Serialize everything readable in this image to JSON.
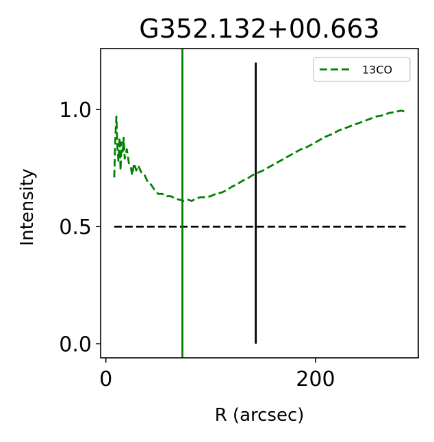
{
  "chart_data": {
    "type": "line",
    "title": "G352.132+00.663",
    "xlabel": "R (arcsec)",
    "ylabel": "Intensity",
    "xlim": [
      -5,
      298
    ],
    "ylim": [
      -0.06,
      1.26
    ],
    "xticks": [
      {
        "value": 0,
        "label": "0"
      },
      {
        "value": 200,
        "label": "200"
      }
    ],
    "yticks": [
      {
        "value": 0.0,
        "label": "0.0"
      },
      {
        "value": 0.5,
        "label": "0.5"
      },
      {
        "value": 1.0,
        "label": "1.0"
      }
    ],
    "grid": false,
    "legend": {
      "position": "top-right",
      "entries": [
        "13CO"
      ]
    },
    "series": [
      {
        "name": "13CO",
        "color": "#008000",
        "style": "dashed",
        "x": [
          8,
          9,
          10,
          11,
          12,
          13,
          14,
          15,
          16,
          17,
          18,
          20,
          22,
          24,
          25,
          27,
          29,
          31,
          34,
          37,
          40,
          43,
          46,
          50,
          54,
          58,
          62,
          66,
          70,
          74,
          78,
          82,
          86,
          90,
          95,
          100,
          105,
          110,
          115,
          120,
          125,
          130,
          135,
          140,
          145,
          150,
          156,
          162,
          168,
          174,
          180,
          186,
          192,
          198,
          204,
          210,
          216,
          222,
          228,
          234,
          240,
          246,
          252,
          258,
          264,
          270,
          276,
          282,
          286
        ],
        "y": [
          0.71,
          0.87,
          0.97,
          0.84,
          0.78,
          0.88,
          0.74,
          0.86,
          0.82,
          0.88,
          0.79,
          0.83,
          0.77,
          0.75,
          0.72,
          0.77,
          0.74,
          0.76,
          0.73,
          0.72,
          0.69,
          0.68,
          0.66,
          0.64,
          0.64,
          0.63,
          0.63,
          0.62,
          0.615,
          0.61,
          0.615,
          0.61,
          0.62,
          0.625,
          0.625,
          0.63,
          0.64,
          0.645,
          0.655,
          0.67,
          0.68,
          0.695,
          0.705,
          0.72,
          0.73,
          0.74,
          0.755,
          0.77,
          0.785,
          0.8,
          0.815,
          0.83,
          0.84,
          0.855,
          0.87,
          0.885,
          0.895,
          0.91,
          0.92,
          0.93,
          0.94,
          0.95,
          0.96,
          0.97,
          0.975,
          0.985,
          0.99,
          0.995,
          0.99
        ]
      }
    ],
    "reference_lines": [
      {
        "kind": "hline",
        "y": 0.5,
        "x_range": [
          8,
          286
        ],
        "color": "#000000",
        "style": "dashed"
      },
      {
        "kind": "vline",
        "x": 73,
        "y_range": [
          -0.06,
          1.26
        ],
        "color": "#008000",
        "style": "solid"
      },
      {
        "kind": "vline",
        "x": 143,
        "y_range": [
          0.0,
          1.2
        ],
        "color": "#000000",
        "style": "solid"
      }
    ]
  }
}
